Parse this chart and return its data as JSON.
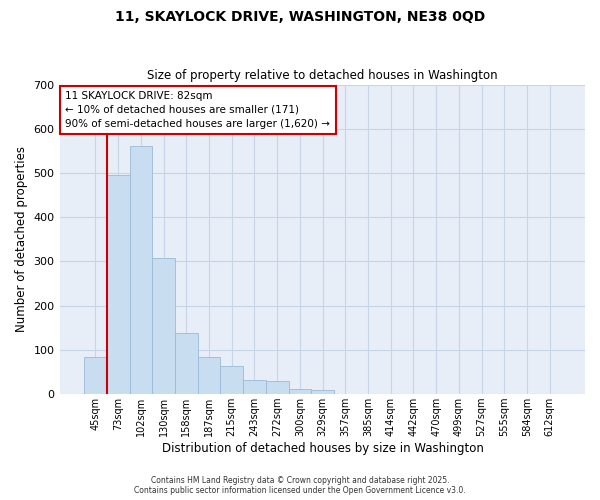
{
  "title": "11, SKAYLOCK DRIVE, WASHINGTON, NE38 0QD",
  "subtitle": "Size of property relative to detached houses in Washington",
  "xlabel": "Distribution of detached houses by size in Washington",
  "ylabel": "Number of detached properties",
  "footer_line1": "Contains HM Land Registry data © Crown copyright and database right 2025.",
  "footer_line2": "Contains public sector information licensed under the Open Government Licence v3.0.",
  "bar_labels": [
    "45sqm",
    "73sqm",
    "102sqm",
    "130sqm",
    "158sqm",
    "187sqm",
    "215sqm",
    "243sqm",
    "272sqm",
    "300sqm",
    "329sqm",
    "357sqm",
    "385sqm",
    "414sqm",
    "442sqm",
    "470sqm",
    "499sqm",
    "527sqm",
    "555sqm",
    "584sqm",
    "612sqm"
  ],
  "bar_values": [
    83,
    495,
    560,
    308,
    138,
    85,
    63,
    33,
    30,
    11,
    10,
    0,
    0,
    0,
    0,
    0,
    0,
    0,
    0,
    0,
    0
  ],
  "bar_color": "#c9ddf0",
  "bar_edge_color": "#9bbad8",
  "red_line_index": 1,
  "ylim": [
    0,
    700
  ],
  "yticks": [
    0,
    100,
    200,
    300,
    400,
    500,
    600,
    700
  ],
  "annotation_title": "11 SKAYLOCK DRIVE: 82sqm",
  "annotation_line1": "← 10% of detached houses are smaller (171)",
  "annotation_line2": "90% of semi-detached houses are larger (1,620) →",
  "annotation_box_color": "#ffffff",
  "annotation_border_color": "#cc0000",
  "red_line_color": "#cc0000",
  "grid_color": "#c8d4e8",
  "plot_bg_color": "#e8eef8",
  "figure_bg_color": "#ffffff"
}
